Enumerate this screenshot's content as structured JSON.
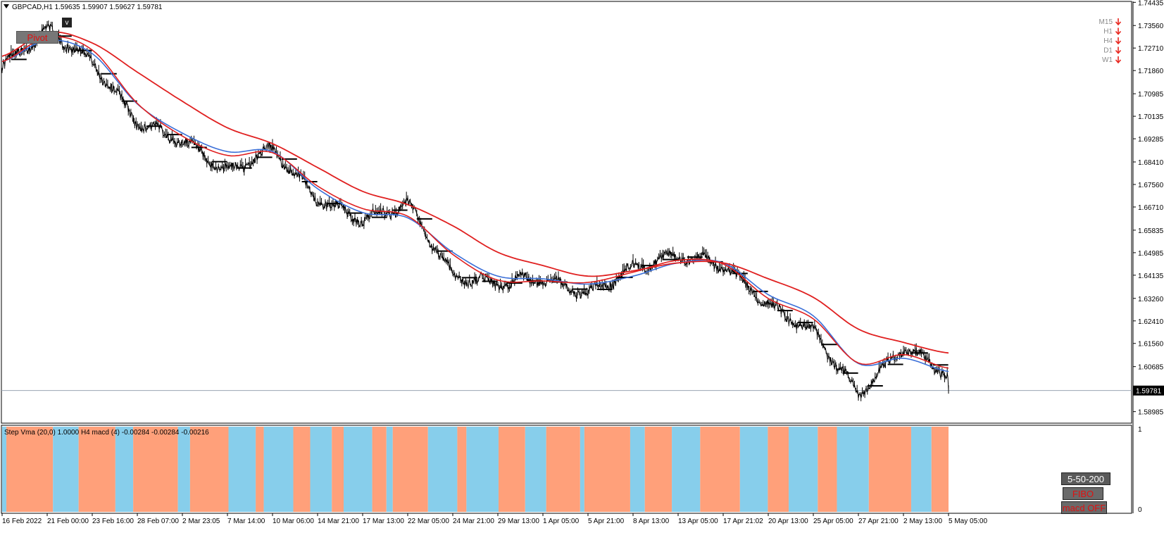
{
  "header": {
    "symbol_line": "GBPCAD,H1  1.59635 1.59907 1.59627 1.59781"
  },
  "price_axis": {
    "labels": [
      "1.74435",
      "1.73560",
      "1.72710",
      "1.71860",
      "1.70985",
      "1.70135",
      "1.69285",
      "1.68410",
      "1.67560",
      "1.66710",
      "1.65835",
      "1.64985",
      "1.64135",
      "1.63260",
      "1.62410",
      "1.61560",
      "1.60685",
      "1.59781",
      "1.58985"
    ],
    "current_price": "1.59781"
  },
  "time_axis": {
    "labels": [
      "16 Feb 2022",
      "21 Feb 00:00",
      "23 Feb 16:00",
      "28 Feb 07:00",
      "2 Mar 23:05",
      "7 Mar 14:00",
      "10 Mar 06:00",
      "14 Mar 21:00",
      "17 Mar 13:00",
      "22 Mar 05:00",
      "24 Mar 21:00",
      "29 Mar 13:00",
      "1 Apr 05:00",
      "5 Apr 21:00",
      "8 Apr 13:00",
      "13 Apr 05:00",
      "17 Apr 21:02",
      "20 Apr 13:00",
      "25 Apr 05:00",
      "27 Apr 21:00",
      "2 May 13:00",
      "5 May 05:00"
    ]
  },
  "timeframes": {
    "items": [
      {
        "label": "M15",
        "direction": "down"
      },
      {
        "label": "H1",
        "direction": "down"
      },
      {
        "label": "H4",
        "direction": "down"
      },
      {
        "label": "D1",
        "direction": "down"
      },
      {
        "label": "W1",
        "direction": "down"
      }
    ],
    "arrow_icon": "arrow-down-icon",
    "arrow_color": "#e8261e"
  },
  "indicator": {
    "label": "Step Vma  (20,0) 1.0000  H4  macd (4) -0.00284 -0.00284 -0.00216",
    "scale_top": "1",
    "scale_bottom": "0",
    "color_up": "#87ceeb",
    "color_down": "#ffa07a"
  },
  "buttons": {
    "vma": "5-50-200",
    "fibo": "FIBO",
    "macd": "macd OFF",
    "pivot": "Pivot",
    "toggle": "v"
  },
  "colors": {
    "price": "#000000",
    "ma_fast": "#e02020",
    "ma_slow": "#e02020",
    "vma": "#3a6fd8",
    "grid_line": "#9aa4b2"
  },
  "chart_data": {
    "type": "line",
    "title": "GBPCAD,H1",
    "ylim": [
      1.5855,
      1.7447
    ],
    "x_categories": [
      "16 Feb 2022",
      "21 Feb 00:00",
      "23 Feb 16:00",
      "28 Feb 07:00",
      "2 Mar 23:05",
      "7 Mar 14:00",
      "10 Mar 06:00",
      "14 Mar 21:00",
      "17 Mar 13:00",
      "22 Mar 05:00",
      "24 Mar 21:00",
      "29 Mar 13:00",
      "1 Apr 05:00",
      "5 Apr 21:00",
      "8 Apr 13:00",
      "13 Apr 05:00",
      "17 Apr 21:02",
      "20 Apr 13:00",
      "25 Apr 05:00",
      "27 Apr 21:00",
      "2 May 13:00",
      "5 May 05:00"
    ],
    "series": [
      {
        "values": [
          1.72,
          1.734,
          1.722,
          1.699,
          1.692,
          1.68,
          1.689,
          1.67,
          1.662,
          1.668,
          1.641,
          1.638,
          1.64,
          1.634,
          1.644,
          1.649,
          1.645,
          1.63,
          1.62,
          1.596,
          1.614,
          1.604
        ]
      },
      {
        "values": [
          1.722,
          1.73,
          1.725,
          1.706,
          1.695,
          1.688,
          1.688,
          1.674,
          1.665,
          1.663,
          1.65,
          1.641,
          1.64,
          1.638,
          1.641,
          1.646,
          1.646,
          1.634,
          1.626,
          1.608,
          1.61,
          1.605
        ]
      },
      {
        "values": [
          1.724,
          1.733,
          1.729,
          1.718,
          1.707,
          1.697,
          1.691,
          1.682,
          1.673,
          1.668,
          1.66,
          1.65,
          1.645,
          1.641,
          1.643,
          1.646,
          1.646,
          1.64,
          1.633,
          1.621,
          1.616,
          1.612
        ]
      }
    ]
  }
}
